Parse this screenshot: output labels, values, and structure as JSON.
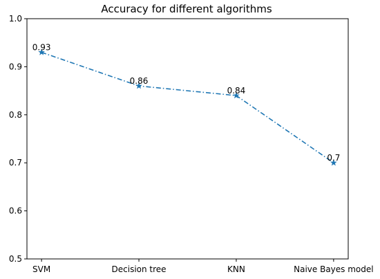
{
  "chart_data": {
    "type": "line",
    "title": "Accuracy for different algorithms",
    "xlabel": "",
    "ylabel": "",
    "categories": [
      "SVM",
      "Decision tree",
      "KNN",
      "Naive Bayes model"
    ],
    "series": [
      {
        "values": [
          0.93,
          0.86,
          0.84,
          0.7
        ],
        "data_labels": [
          "0.93",
          "0.86",
          "0.84",
          "0.7"
        ],
        "color": "#1f77b4",
        "line_style": "dash-dot",
        "marker": "star"
      }
    ],
    "ylim": [
      0.5,
      1.0
    ],
    "yticks": [
      0.5,
      0.6,
      0.7,
      0.8,
      0.9,
      1.0
    ],
    "ytick_labels": [
      "0.5",
      "0.6",
      "0.7",
      "0.8",
      "0.9",
      "1.0"
    ],
    "grid": false,
    "legend": "none"
  }
}
